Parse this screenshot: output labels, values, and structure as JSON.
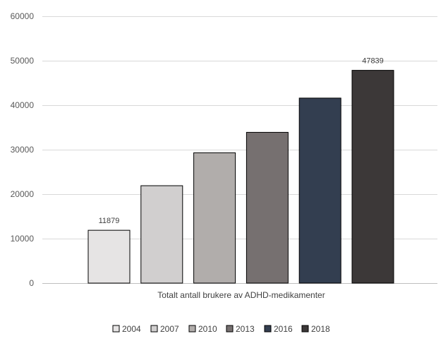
{
  "chart_data": {
    "type": "bar",
    "title": "",
    "xlabel": "",
    "ylabel": "",
    "category_label": "Totalt antall brukere av ADHD-medikamenter",
    "ylim": [
      0,
      60000
    ],
    "yticks": [
      0,
      10000,
      20000,
      30000,
      40000,
      50000,
      60000
    ],
    "ytick_labels": [
      "0",
      "10000",
      "20000",
      "30000",
      "40000",
      "50000",
      "60000"
    ],
    "grid": true,
    "legend_position": "bottom",
    "series": [
      {
        "name": "2004",
        "value": 11879,
        "color": "#e6e4e4",
        "data_label": "11879"
      },
      {
        "name": "2007",
        "value": 21900,
        "color": "#d1cfcf",
        "data_label": ""
      },
      {
        "name": "2010",
        "value": 29300,
        "color": "#b1adab",
        "data_label": ""
      },
      {
        "name": "2013",
        "value": 33900,
        "color": "#767070",
        "data_label": ""
      },
      {
        "name": "2016",
        "value": 41600,
        "color": "#333e50",
        "data_label": ""
      },
      {
        "name": "2018",
        "value": 47839,
        "color": "#3c3838",
        "data_label": "47839"
      }
    ]
  }
}
